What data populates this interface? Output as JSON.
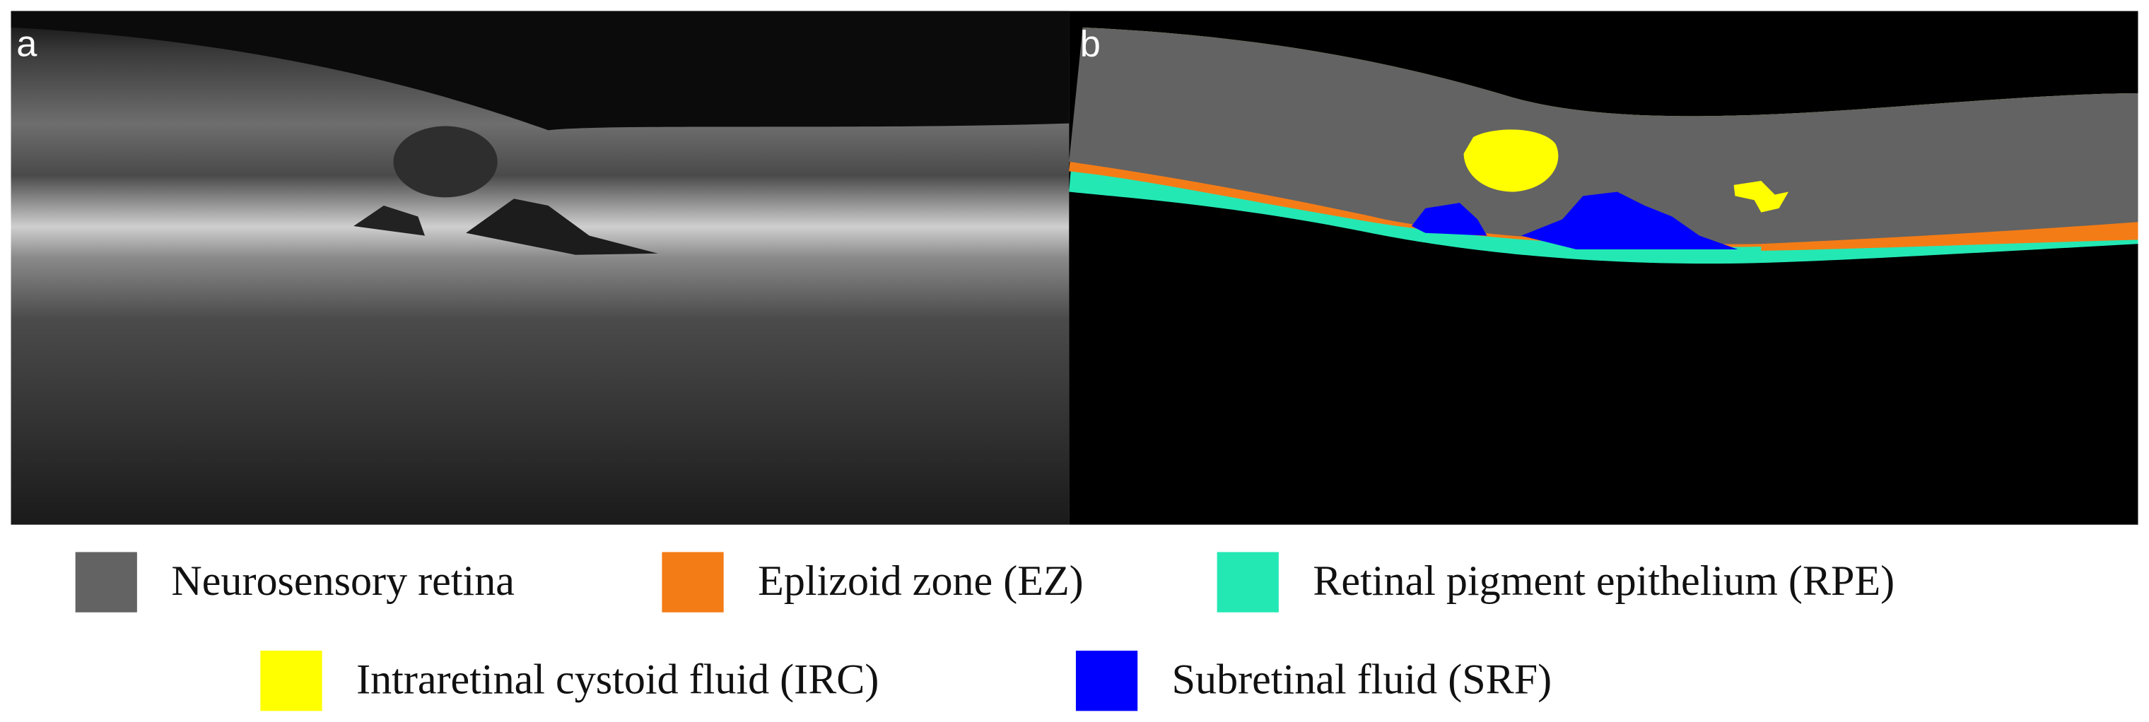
{
  "panels": [
    {
      "label": "a"
    },
    {
      "label": "b"
    }
  ],
  "legend": [
    {
      "name": "Neurosensory retina",
      "color": "#636363"
    },
    {
      "name": "Eplizoid zone (EZ)",
      "color": "#f47c16"
    },
    {
      "name": "Retinal pigment epithelium (RPE)",
      "color": "#23e8b4"
    },
    {
      "name": "Intraretinal cystoid fluid (IRC)",
      "color": "#ffff00"
    },
    {
      "name": "Subretinal fluid (SRF)",
      "color": "#0000ff"
    }
  ]
}
